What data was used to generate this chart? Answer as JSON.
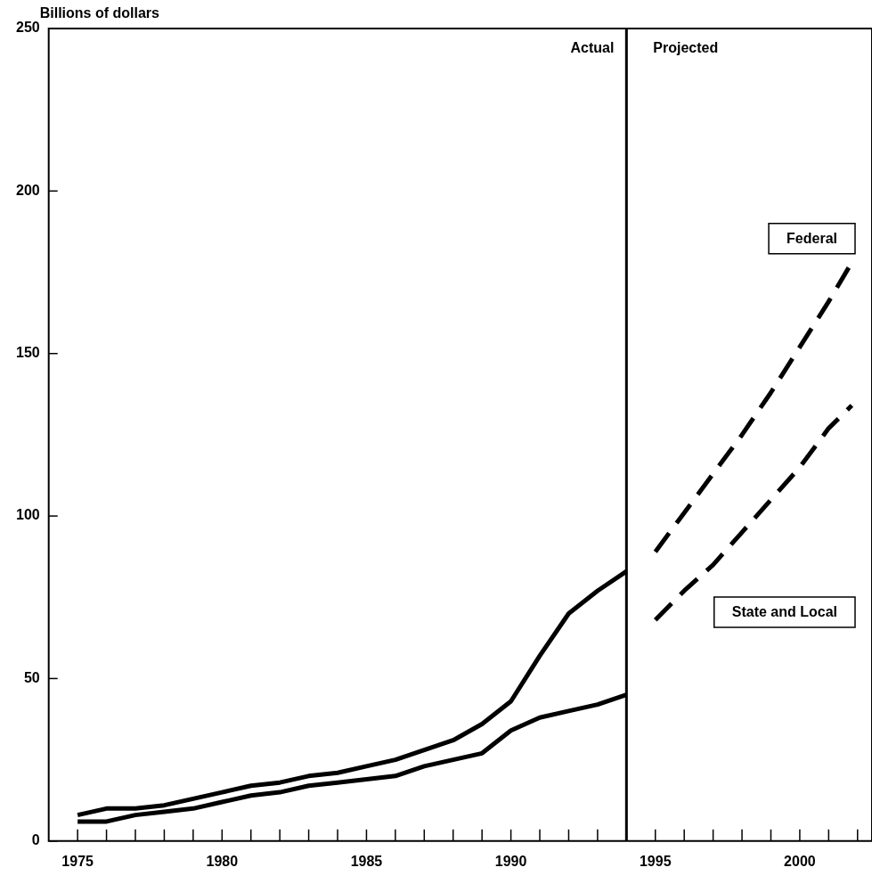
{
  "chart_data": {
    "type": "line",
    "ylabel": "Billions of dollars",
    "xlim": [
      1974,
      2002.5
    ],
    "ylim": [
      0,
      250
    ],
    "yticks": [
      0,
      50,
      100,
      150,
      200,
      250
    ],
    "xticks": [
      1975,
      {
        "value": 1976,
        "label": null
      },
      {
        "value": 1977,
        "label": null
      },
      {
        "value": 1978,
        "label": null
      },
      {
        "value": 1979,
        "label": null
      },
      1980,
      {
        "value": 1981,
        "label": null
      },
      {
        "value": 1982,
        "label": null
      },
      {
        "value": 1983,
        "label": null
      },
      {
        "value": 1984,
        "label": null
      },
      1985,
      {
        "value": 1986,
        "label": null
      },
      {
        "value": 1987,
        "label": null
      },
      {
        "value": 1988,
        "label": null
      },
      {
        "value": 1989,
        "label": null
      },
      1990,
      {
        "value": 1991,
        "label": null
      },
      {
        "value": 1992,
        "label": null
      },
      {
        "value": 1993,
        "label": null
      },
      {
        "value": 1994,
        "label": null
      },
      1995,
      {
        "value": 1996,
        "label": null
      },
      {
        "value": 1997,
        "label": null
      },
      {
        "value": 1998,
        "label": null
      },
      {
        "value": 1999,
        "label": null
      },
      2000,
      {
        "value": 2001,
        "label": null
      },
      {
        "value": 2002,
        "label": null
      }
    ],
    "series": [
      {
        "color": "#000000",
        "line_style": "solid",
        "x": [
          1975,
          1976,
          1977,
          1978,
          1979,
          1980,
          1981,
          1982,
          1983,
          1984,
          1985,
          1986,
          1987,
          1988,
          1989,
          1990,
          1991,
          1992,
          1993,
          1994
        ],
        "values": [
          8,
          10,
          10,
          11,
          13,
          15,
          17,
          18,
          20,
          21,
          23,
          25,
          28,
          31,
          36,
          43,
          57,
          70,
          77,
          83
        ]
      },
      {
        "color": "#000000",
        "line_style": "solid",
        "x": [
          1975,
          1976,
          1977,
          1978,
          1979,
          1980,
          1981,
          1982,
          1983,
          1984,
          1985,
          1986,
          1987,
          1988,
          1989,
          1990,
          1991,
          1992,
          1993,
          1994
        ],
        "values": [
          6,
          6,
          8,
          9,
          10,
          12,
          14,
          15,
          17,
          18,
          19,
          20,
          23,
          25,
          27,
          34,
          38,
          40,
          42,
          45
        ]
      },
      {
        "name": "Federal",
        "color": "#000000",
        "line_style": "dashed",
        "x": [
          1995,
          1996,
          1997,
          1998,
          1999,
          2000,
          2001,
          2001.8
        ],
        "values": [
          89,
          101,
          113,
          125,
          138,
          152,
          166,
          178
        ]
      },
      {
        "name": "State and Local",
        "color": "#000000",
        "line_style": "dashed",
        "x": [
          1995,
          1996,
          1997,
          1998,
          1999,
          2000,
          2001,
          2001.8
        ],
        "values": [
          68,
          77,
          85,
          95,
          105,
          115,
          127,
          134
        ]
      }
    ],
    "ref_lines": [
      {
        "axis": "x",
        "value": 1994,
        "label": "Actual",
        "color": "#000000",
        "line_style": "solid"
      }
    ],
    "annotations": [
      "Projected"
    ],
    "legend": false,
    "grid": false,
    "marker": "none"
  }
}
